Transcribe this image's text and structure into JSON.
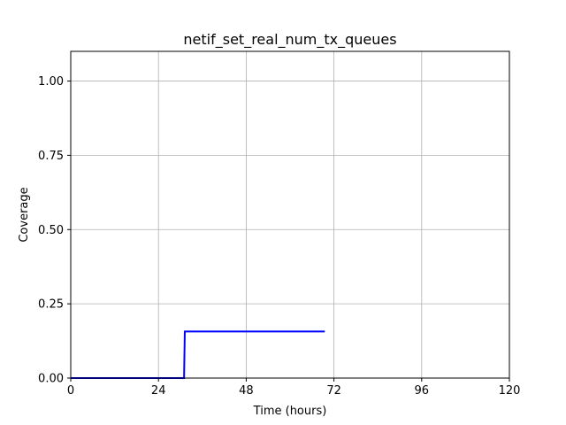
{
  "chart_data": {
    "type": "line",
    "title": "netif_set_real_num_tx_queues",
    "xlabel": "Time (hours)",
    "ylabel": "Coverage",
    "xlim": [
      0,
      120
    ],
    "ylim": [
      0,
      1.1
    ],
    "xticks": [
      0,
      24,
      48,
      72,
      96,
      120
    ],
    "xtick_labels": [
      "0",
      "24",
      "48",
      "72",
      "96",
      "120"
    ],
    "yticks": [
      0,
      0.25,
      0.5,
      0.75,
      1.0
    ],
    "ytick_labels": [
      "0.00",
      "0.25",
      "0.50",
      "0.75",
      "1.00"
    ],
    "grid": true,
    "series": [
      {
        "color": "#0000ff",
        "x": [
          0,
          31,
          31.2,
          69.5
        ],
        "y": [
          0,
          0,
          0.157,
          0.157
        ]
      }
    ]
  }
}
